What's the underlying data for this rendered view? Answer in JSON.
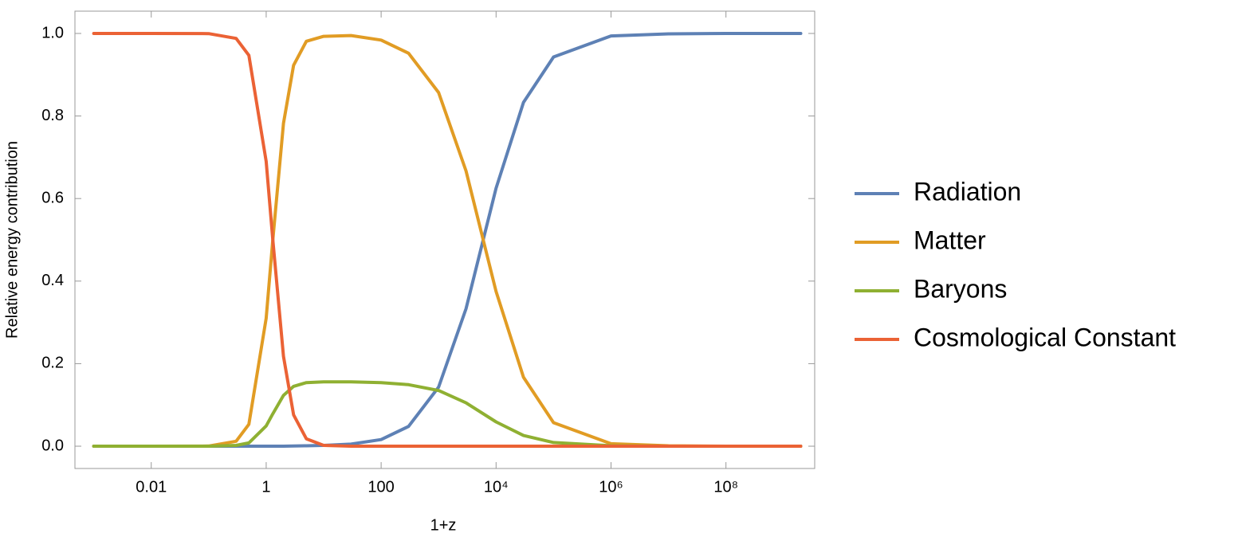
{
  "chart_data": {
    "type": "line",
    "x_label": "1+z",
    "y_label": "Relative energy contribution",
    "xscale": "log",
    "legend": "right",
    "x": [
      0.001,
      0.01,
      0.1,
      0.3,
      0.5,
      1,
      1.3,
      2,
      3,
      5,
      10,
      30,
      100,
      300,
      1000,
      3000,
      10000,
      30000,
      100000,
      1000000,
      10000000,
      100000000,
      1000000000,
      2000000000
    ],
    "series": [
      {
        "name": "Radiation",
        "color": "#5e81b5",
        "values": [
          0,
          0,
          0,
          0,
          0,
          0,
          0,
          0,
          0.0005,
          0.001,
          0.002,
          0.005,
          0.016,
          0.048,
          0.143,
          0.333,
          0.625,
          0.833,
          0.943,
          0.994,
          0.999,
          1,
          1,
          1
        ]
      },
      {
        "name": "Matter",
        "color": "#e19c24",
        "values": [
          0,
          0,
          0.0004,
          0.012,
          0.053,
          0.31,
          0.497,
          0.782,
          0.923,
          0.981,
          0.993,
          0.995,
          0.984,
          0.952,
          0.857,
          0.667,
          0.375,
          0.167,
          0.057,
          0.006,
          0.001,
          0,
          0,
          0
        ]
      },
      {
        "name": "Baryons",
        "color": "#8fb032",
        "values": [
          0,
          0,
          0.0001,
          0.002,
          0.008,
          0.049,
          0.078,
          0.123,
          0.145,
          0.154,
          0.156,
          0.156,
          0.154,
          0.149,
          0.135,
          0.105,
          0.059,
          0.026,
          0.009,
          0.001,
          0,
          0,
          0,
          0
        ]
      },
      {
        "name": "Cosmological Constant",
        "color": "#eb6235",
        "values": [
          1,
          1,
          0.9996,
          0.988,
          0.947,
          0.69,
          0.503,
          0.218,
          0.076,
          0.018,
          0.002,
          0,
          0,
          0,
          0,
          0,
          0,
          0,
          0,
          0,
          0,
          0,
          0,
          0
        ]
      }
    ],
    "xlim": [
      0.00047,
      3500000000
    ],
    "xticks": [
      0.01,
      1,
      100,
      {
        "value": 10000,
        "label": "10⁴"
      },
      {
        "value": 1000000,
        "label": "10⁶"
      },
      {
        "value": 100000000,
        "label": "10⁸"
      }
    ],
    "ylim": [
      -0.054,
      1.054
    ],
    "yticks": [
      {
        "value": 0,
        "label": "0.0"
      },
      0.2,
      0.4,
      0.6,
      0.8,
      {
        "value": 1,
        "label": "1.0"
      }
    ]
  }
}
